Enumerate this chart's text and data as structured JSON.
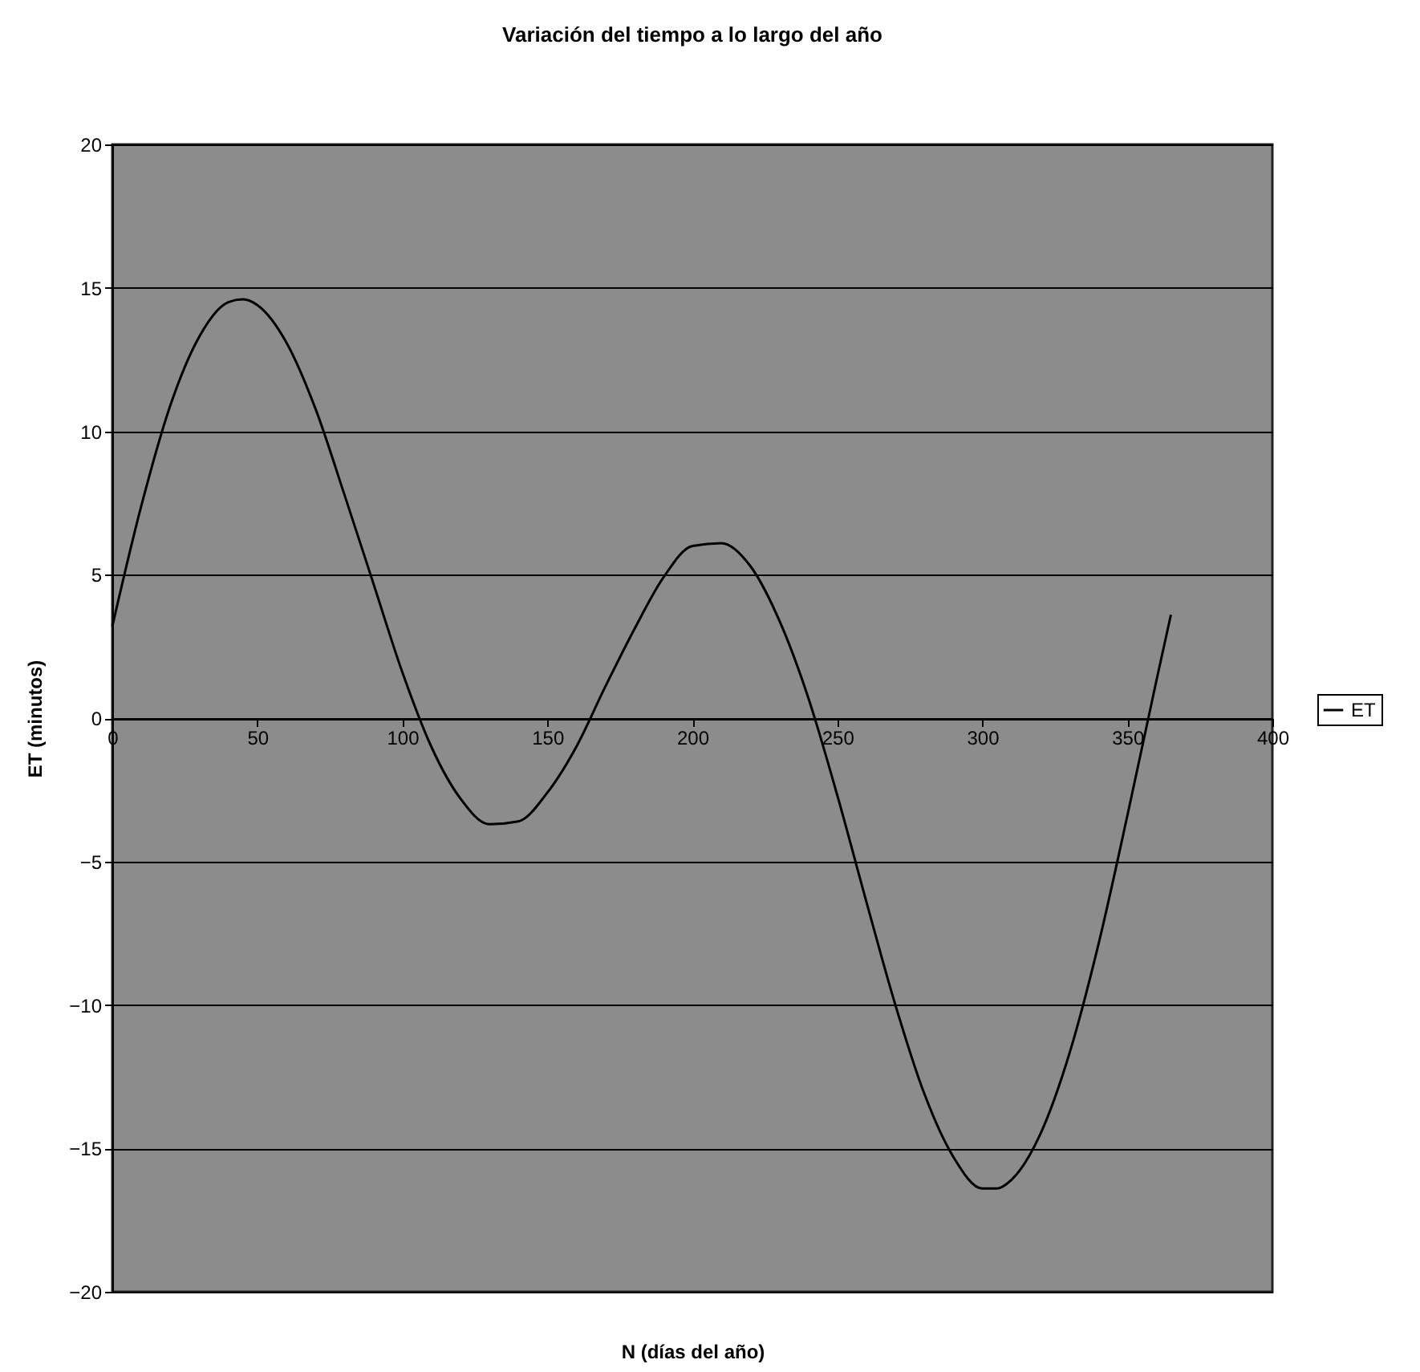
{
  "chart_data": {
    "type": "line",
    "title": "Variación del tiempo a lo largo del año",
    "xlabel": "N (días del año)",
    "ylabel": "ET (minutos)",
    "x": [
      0,
      10,
      20,
      30,
      40,
      45,
      50,
      60,
      70,
      80,
      90,
      100,
      110,
      120,
      130,
      140,
      150,
      160,
      170,
      180,
      190,
      200,
      210,
      220,
      230,
      240,
      250,
      260,
      270,
      280,
      290,
      300,
      305,
      310,
      320,
      330,
      340,
      350,
      360,
      365
    ],
    "series": [
      {
        "name": "ET",
        "color": "#000000",
        "values": [
          3.2,
          7.4,
          10.9,
          13.3,
          14.5,
          14.6,
          14.4,
          13.1,
          10.8,
          7.8,
          4.7,
          1.6,
          -1.0,
          -2.8,
          -3.7,
          -3.6,
          -2.6,
          -1.0,
          1.1,
          3.1,
          4.9,
          6.0,
          6.1,
          5.3,
          3.4,
          0.7,
          -2.7,
          -6.4,
          -10.0,
          -13.1,
          -15.3,
          -16.4,
          -16.4,
          -16.1,
          -14.5,
          -11.7,
          -7.9,
          -3.4,
          1.3,
          3.6
        ]
      }
    ],
    "xlim": [
      0,
      400
    ],
    "xticks": [
      0,
      50,
      100,
      150,
      200,
      250,
      300,
      350,
      400
    ],
    "ylim": [
      -20,
      20
    ],
    "yticks": [
      -20,
      -15,
      -10,
      -5,
      0,
      5,
      10,
      15,
      20
    ],
    "grid": "y",
    "legend": "right",
    "marker": "none",
    "line_style": "solid"
  }
}
